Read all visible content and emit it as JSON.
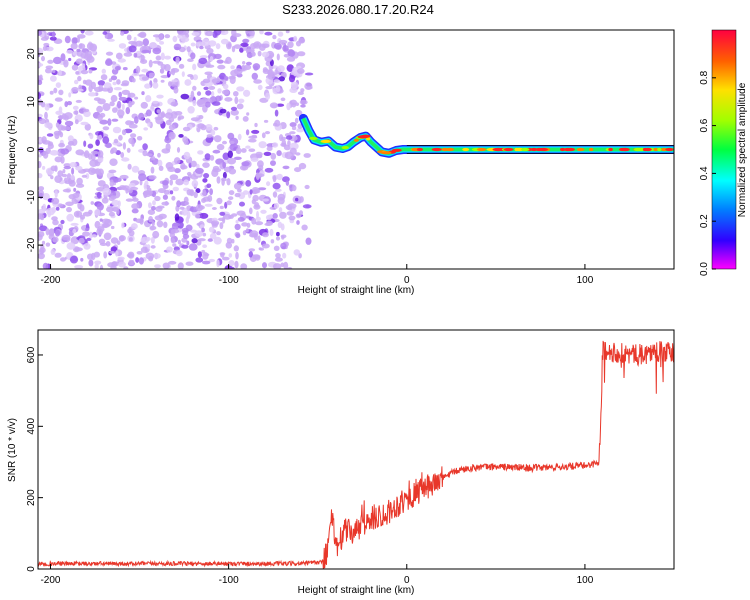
{
  "title": "S233.2026.080.17.20.R24",
  "colors": {
    "trace": "#e8372a",
    "axis": "#000000",
    "scatter": "#8a3cf0"
  },
  "chart_data": [
    {
      "type": "heatmap",
      "xlabel": "Height of straight line (km)",
      "ylabel": "Frequency (Hz)",
      "xlim": [
        -207,
        150
      ],
      "ylim": [
        -25,
        25
      ],
      "xticks": [
        "-200",
        "-100",
        "0",
        "100"
      ],
      "yticks": [
        "-20",
        "-10",
        "0",
        "10",
        "20"
      ],
      "colorbar": {
        "label": "Normalized spectral amplitude",
        "range": [
          0,
          1
        ],
        "ticks": [
          "0.0",
          "0.2",
          "0.4",
          "0.6",
          "0.8"
        ]
      },
      "noise_region_end_km": -58,
      "signal_track": [
        {
          "x": -58,
          "y": 6.5
        },
        {
          "x": -55,
          "y": 4
        },
        {
          "x": -52,
          "y": 2
        },
        {
          "x": -48,
          "y": 1.5
        },
        {
          "x": -44,
          "y": 1.8
        },
        {
          "x": -40,
          "y": 0.5
        },
        {
          "x": -36,
          "y": 0.2
        },
        {
          "x": -33,
          "y": 0.6
        },
        {
          "x": -30,
          "y": 1.5
        },
        {
          "x": -26,
          "y": 2.5
        },
        {
          "x": -23,
          "y": 2.8
        },
        {
          "x": -20,
          "y": 1.5
        },
        {
          "x": -17,
          "y": 0.5
        },
        {
          "x": -14,
          "y": -0.5
        },
        {
          "x": -10,
          "y": -0.8
        },
        {
          "x": -6,
          "y": -0.2
        },
        {
          "x": -2,
          "y": 0
        },
        {
          "x": 0,
          "y": 0
        },
        {
          "x": 150,
          "y": 0
        }
      ]
    },
    {
      "type": "line",
      "xlabel": "Height of straight line (km)",
      "ylabel": "SNR (10 * v/v)",
      "xlim": [
        -207,
        150
      ],
      "ylim": [
        0,
        670
      ],
      "xticks": [
        "-200",
        "-100",
        "0",
        "100"
      ],
      "yticks": [
        "0",
        "200",
        "400",
        "600"
      ],
      "series": [
        {
          "name": "SNR",
          "x": [
            -207,
            -150,
            -100,
            -60,
            -47,
            -44,
            -42,
            -40,
            -38,
            -35,
            -30,
            -25,
            -20,
            -15,
            -10,
            -5,
            0,
            5,
            10,
            15,
            20,
            25,
            30,
            35,
            40,
            50,
            60,
            70,
            80,
            90,
            100,
            105,
            108,
            109,
            110,
            115,
            120,
            130,
            140,
            150
          ],
          "values": [
            15,
            15,
            15,
            15,
            20,
            60,
            150,
            80,
            60,
            110,
            100,
            120,
            140,
            150,
            160,
            180,
            195,
            210,
            225,
            240,
            255,
            268,
            278,
            283,
            285,
            287,
            285,
            283,
            285,
            287,
            290,
            295,
            300,
            450,
            620,
            610,
            605,
            600,
            610,
            605
          ]
        }
      ]
    }
  ]
}
